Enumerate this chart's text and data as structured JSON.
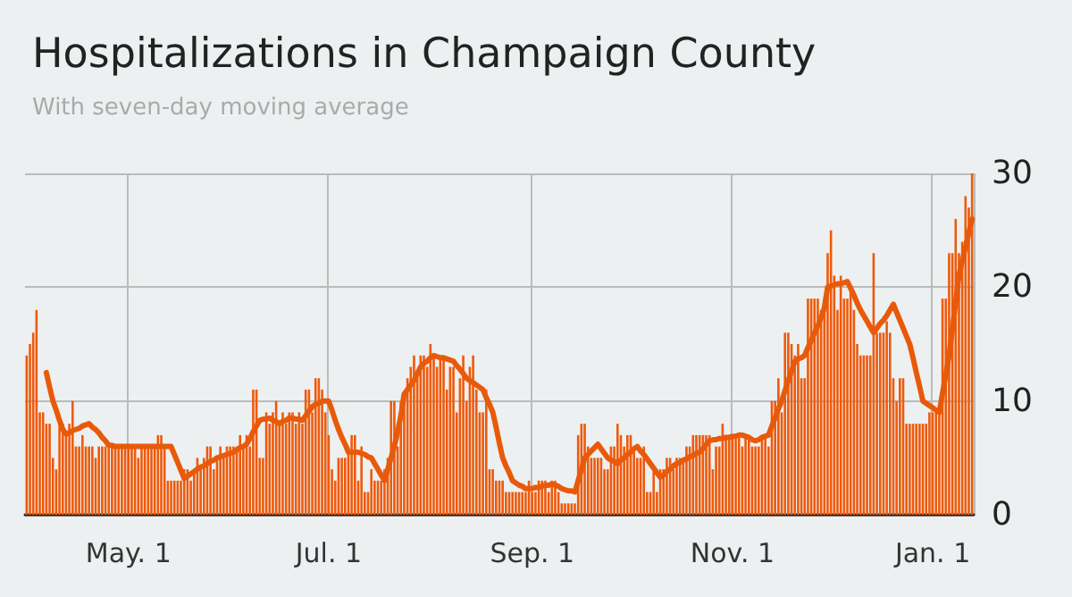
{
  "chart_data": {
    "type": "bar",
    "title": "Hospitalizations in Champaign County",
    "subtitle": "With seven-day moving average",
    "categories": [
      null,
      null,
      null,
      null,
      null,
      null,
      null,
      null,
      null,
      null,
      null,
      null,
      null,
      null,
      null,
      null,
      null,
      null,
      null,
      null,
      null,
      null,
      null,
      null,
      null,
      null,
      null,
      null,
      null,
      null,
      null,
      "May. 1",
      null,
      null,
      null,
      null,
      null,
      null,
      null,
      null,
      null,
      null,
      null,
      null,
      null,
      null,
      null,
      null,
      null,
      null,
      null,
      null,
      null,
      null,
      null,
      null,
      null,
      null,
      null,
      null,
      null,
      null,
      null,
      null,
      null,
      null,
      null,
      null,
      null,
      null,
      null,
      null,
      null,
      null,
      null,
      null,
      null,
      null,
      null,
      null,
      null,
      null,
      null,
      null,
      null,
      null,
      null,
      null,
      null,
      null,
      null,
      null,
      "Jul. 1",
      null,
      null,
      null,
      null,
      null,
      null,
      null,
      null,
      null,
      null,
      null,
      null,
      null,
      null,
      null,
      null,
      null,
      null,
      null,
      null,
      null,
      null,
      null,
      null,
      null,
      null,
      null,
      null,
      null,
      null,
      null,
      null,
      null,
      null,
      null,
      null,
      null,
      null,
      null,
      null,
      null,
      null,
      null,
      null,
      null,
      null,
      null,
      null,
      null,
      null,
      null,
      null,
      null,
      null,
      null,
      null,
      null,
      null,
      null,
      null,
      null,
      "Sep. 1",
      null,
      null,
      null,
      null,
      null,
      null,
      null,
      null,
      null,
      null,
      null,
      null,
      null,
      null,
      null,
      null,
      null,
      null,
      null,
      null,
      null,
      null,
      null,
      null,
      null,
      null,
      null,
      null,
      null,
      null,
      null,
      null,
      null,
      null,
      null,
      null,
      null,
      null,
      null,
      null,
      null,
      null,
      null,
      null,
      null,
      null,
      null,
      null,
      null,
      null,
      null,
      null,
      null,
      null,
      null,
      null,
      null,
      null,
      null,
      null,
      "Nov. 1",
      null,
      null,
      null,
      null,
      null,
      null,
      null,
      null,
      null,
      null,
      null,
      null,
      null,
      null,
      null,
      null,
      null,
      null,
      null,
      null,
      null,
      null,
      null,
      null,
      null,
      null,
      null,
      null,
      null,
      null,
      null,
      null,
      null,
      null,
      null,
      null,
      null,
      null,
      null,
      null,
      null,
      null,
      null,
      null,
      null,
      null,
      null,
      null,
      null,
      null,
      null,
      null,
      null,
      null,
      null,
      null,
      null,
      null,
      null,
      null,
      "Jan. 1",
      null,
      null,
      null,
      null,
      null,
      null,
      null,
      null,
      null,
      null,
      null,
      null
    ],
    "ylim": [
      0,
      30
    ],
    "yticks": [
      0,
      10,
      20,
      30
    ],
    "grid": true,
    "marker": "none",
    "series": [
      {
        "color": "#ee5a0b",
        "values": [
          14,
          15,
          16,
          18,
          9,
          9,
          8,
          8,
          5,
          4,
          8,
          8,
          7,
          8,
          10,
          6,
          6,
          7,
          6,
          6,
          6,
          5,
          6,
          6,
          6,
          6,
          6,
          6,
          6,
          6,
          6,
          6,
          6,
          6,
          5,
          6,
          6,
          6,
          6,
          6,
          7,
          7,
          6,
          3,
          3,
          3,
          3,
          3,
          4,
          4,
          3,
          4,
          5,
          4,
          5,
          6,
          6,
          4,
          5,
          6,
          5,
          6,
          6,
          6,
          6,
          7,
          6,
          7,
          6,
          11,
          11,
          5,
          5,
          9,
          8,
          9,
          10,
          8,
          9,
          8,
          9,
          9,
          8,
          9,
          8,
          11,
          11,
          9,
          12,
          12,
          11,
          9,
          7,
          4,
          3,
          5,
          5,
          5,
          6,
          7,
          7,
          3,
          6,
          2,
          2,
          4,
          3,
          3,
          3,
          4,
          5,
          10,
          10,
          6,
          10,
          10,
          12,
          13,
          14,
          12,
          14,
          14,
          13,
          15,
          14,
          13,
          14,
          14,
          11,
          13,
          13,
          9,
          12,
          14,
          10,
          13,
          14,
          11,
          9,
          9,
          11,
          4,
          4,
          3,
          3,
          3,
          2,
          2,
          2,
          2,
          2,
          2,
          2,
          3,
          2,
          2,
          3,
          3,
          3,
          2,
          3,
          3,
          2,
          1,
          1,
          1,
          1,
          1,
          7,
          8,
          8,
          6,
          5,
          5,
          5,
          5,
          4,
          4,
          6,
          6,
          8,
          7,
          6,
          7,
          7,
          6,
          5,
          5,
          6,
          2,
          2,
          4,
          2,
          4,
          4,
          5,
          5,
          4,
          5,
          5,
          5,
          6,
          6,
          7,
          7,
          7,
          7,
          7,
          7,
          4,
          6,
          6,
          8,
          7,
          7,
          7,
          7,
          7,
          6,
          7,
          7,
          6,
          6,
          6,
          7,
          7,
          6,
          10,
          10,
          12,
          9,
          16,
          16,
          15,
          14,
          15,
          12,
          12,
          19,
          19,
          19,
          19,
          18,
          19,
          23,
          25,
          21,
          18,
          21,
          19,
          19,
          20,
          18,
          15,
          14,
          14,
          14,
          14,
          23,
          16,
          16,
          16,
          17,
          16,
          12,
          10,
          12,
          12,
          8,
          8,
          8,
          8,
          8,
          8,
          8,
          9,
          9,
          9,
          9,
          19,
          19,
          23,
          23,
          26,
          23,
          24,
          28,
          27,
          30
        ]
      },
      {
        "type": "line",
        "color": "#e85a0a",
        "line_style": "solid",
        "values": [
          null,
          null,
          null,
          null,
          null,
          null,
          12.5,
          11.2,
          10,
          9.2,
          8.3,
          7.5,
          7.1,
          7.2,
          7.4,
          7.5,
          7.6,
          7.8,
          7.9,
          8,
          7.7,
          7.5,
          7.2,
          6.8,
          6.5,
          6.1,
          6.1,
          6,
          6,
          6,
          6,
          6,
          6,
          6,
          6,
          6,
          6,
          6,
          6,
          6,
          6,
          6,
          6,
          6,
          6,
          5.3,
          4.6,
          3.9,
          3.2,
          3.4,
          3.6,
          3.8,
          4,
          4.2,
          4.3,
          4.5,
          4.7,
          4.8,
          5,
          5.1,
          5.2,
          5.3,
          5.4,
          5.5,
          5.7,
          5.9,
          6,
          6.2,
          6.7,
          7.3,
          7.8,
          8.3,
          8.4,
          8.4,
          8.5,
          8.3,
          8.2,
          8,
          8.2,
          8.3,
          8.5,
          8.5,
          8.4,
          8.4,
          8.3,
          8.7,
          9.1,
          9.5,
          9.7,
          9.8,
          10,
          10,
          10,
          9.2,
          8.3,
          7.5,
          6.8,
          6.2,
          5.5,
          5.5,
          5.5,
          5.5,
          5.4,
          5.3,
          5.1,
          5,
          4.5,
          4,
          3.5,
          3,
          4,
          5,
          6,
          7.3,
          8.7,
          10.6,
          11,
          11.4,
          11.8,
          12.4,
          13,
          13.3,
          13.5,
          13.8,
          14,
          13.9,
          13.8,
          13.8,
          13.7,
          13.6,
          13.5,
          13.1,
          12.8,
          12.4,
          12,
          11.8,
          11.6,
          11.4,
          11.2,
          11,
          10.3,
          9.7,
          9,
          7.7,
          6.3,
          5,
          4.3,
          3.7,
          3,
          2.8,
          2.6,
          2.5,
          2.3,
          2.3,
          2.3,
          2.4,
          2.4,
          2.5,
          2.6,
          2.6,
          2.7,
          2.6,
          2.5,
          2.3,
          2.2,
          2.1,
          2.1,
          2,
          3,
          4,
          5,
          5.3,
          5.6,
          5.9,
          6.2,
          5.8,
          5.4,
          5,
          4.8,
          4.7,
          4.5,
          4.8,
          5,
          5.3,
          5.5,
          5.8,
          6,
          5.6,
          5.3,
          4.9,
          4.5,
          4.1,
          3.7,
          3.3,
          3.5,
          3.8,
          4,
          4.3,
          4.5,
          4.6,
          4.8,
          4.9,
          5.1,
          5.2,
          5.4,
          5.5,
          5.8,
          6.2,
          6.5,
          6.6,
          6.6,
          6.7,
          6.7,
          6.8,
          6.8,
          6.9,
          6.9,
          7,
          7,
          6.9,
          6.8,
          6.6,
          6.5,
          6.6,
          6.8,
          6.9,
          7,
          7.8,
          8.5,
          9.3,
          10,
          10.9,
          11.8,
          12.6,
          13.5,
          13.7,
          13.8,
          14,
          14.7,
          15.3,
          16,
          16.6,
          17.3,
          18.2,
          20,
          20.1,
          20.2,
          20.3,
          20.3,
          20.4,
          20.5,
          19.9,
          19.3,
          18.6,
          18,
          17.5,
          17,
          16.5,
          16,
          16.4,
          16.8,
          17.1,
          17.5,
          18,
          18.5,
          17.8,
          17.1,
          16.4,
          15.7,
          15,
          13.8,
          12.5,
          11.3,
          10,
          9.8,
          9.6,
          9.4,
          9.2,
          9,
          10.7,
          12.3,
          14,
          16.3,
          18.7,
          21,
          22.3,
          23.5,
          24.8,
          26
        ]
      }
    ]
  }
}
